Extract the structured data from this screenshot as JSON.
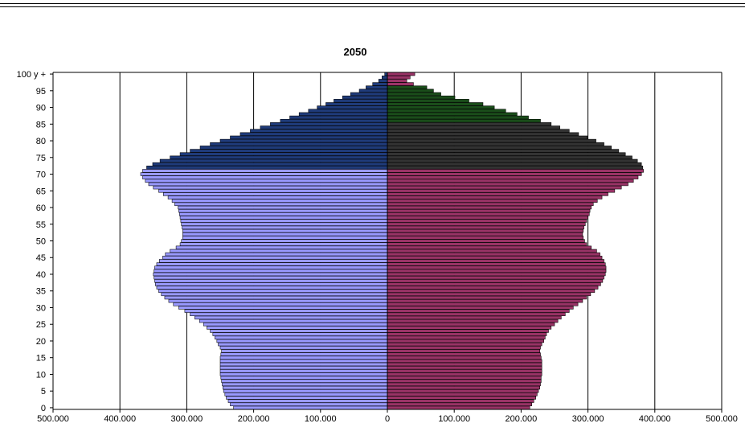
{
  "chart_data": {
    "type": "bar",
    "orientation": "horizontal",
    "subtype": "population-pyramid",
    "title": "2050",
    "xlabel": "",
    "ylabel": "",
    "xlim": [
      -500000,
      500000
    ],
    "x_tick_values": [
      -500000,
      -400000,
      -300000,
      -200000,
      -100000,
      0,
      100000,
      200000,
      300000,
      400000,
      500000
    ],
    "x_tick_labels": [
      "500.000",
      "400.000",
      "300.000",
      "200.000",
      "100.000",
      "0",
      "100.000",
      "200.000",
      "300.000",
      "400.000",
      "500.000"
    ],
    "y_tick_ages": [
      0,
      5,
      10,
      15,
      20,
      25,
      30,
      35,
      40,
      45,
      50,
      55,
      60,
      65,
      70,
      75,
      80,
      85,
      90,
      95,
      100
    ],
    "y_tick_labels": [
      "0",
      "5",
      "10",
      "15",
      "20",
      "25",
      "30",
      "35",
      "40",
      "45",
      "50",
      "55",
      "60",
      "65",
      "70",
      "75",
      "80",
      "85",
      "90",
      "95",
      "100 y +"
    ],
    "grid": "vertical",
    "legend": "none",
    "colors": {
      "left_young": "#9999ff",
      "left_old": "#1f3b7a",
      "right_young": "#993366",
      "right_old": "#333333",
      "right_oldest": "#1a4d1a",
      "bar_edge": "#000000",
      "gridline": "#000000"
    },
    "series": [
      {
        "side": "left",
        "values": [
          230000,
          235000,
          238000,
          241000,
          243000,
          245000,
          246000,
          247000,
          248000,
          249000,
          250000,
          250000,
          250000,
          250000,
          250000,
          250000,
          249000,
          248000,
          250000,
          253000,
          255000,
          258000,
          261000,
          265000,
          270000,
          275000,
          281000,
          288000,
          295000,
          303000,
          312000,
          320000,
          327000,
          333000,
          338000,
          342000,
          345000,
          347000,
          348000,
          349000,
          350000,
          349000,
          348000,
          345000,
          341000,
          336000,
          332000,
          325000,
          316000,
          310000,
          308000,
          306000,
          306000,
          306000,
          307000,
          308000,
          309000,
          310000,
          311000,
          312000,
          313000,
          318000,
          322000,
          328000,
          335000,
          342000,
          350000,
          357000,
          362000,
          366000,
          369000,
          366000,
          360000,
          351000,
          340000,
          325000,
          310000,
          295000,
          280000,
          265000,
          250000,
          235000,
          220000,
          205000,
          190000,
          175000,
          160000,
          146000,
          132000,
          118000,
          105000,
          92000,
          80000,
          67000,
          55000,
          42000,
          32000,
          22000,
          13000,
          8000,
          4000
        ]
      },
      {
        "side": "right",
        "values": [
          213000,
          216000,
          219000,
          222000,
          224000,
          226000,
          228000,
          229000,
          230000,
          230000,
          231000,
          231000,
          231000,
          231000,
          231000,
          230000,
          229000,
          228000,
          229000,
          231000,
          234000,
          236000,
          238000,
          241000,
          245000,
          250000,
          255000,
          260000,
          266000,
          272000,
          278000,
          285000,
          292000,
          298000,
          304000,
          310000,
          315000,
          319000,
          322000,
          324000,
          326000,
          327000,
          327000,
          326000,
          324000,
          321000,
          318000,
          313000,
          305000,
          298000,
          295000,
          293000,
          292000,
          293000,
          294000,
          296000,
          298000,
          300000,
          302000,
          303000,
          305000,
          308000,
          314000,
          321000,
          330000,
          340000,
          350000,
          360000,
          368000,
          375000,
          380000,
          383000,
          382000,
          380000,
          374000,
          366000,
          356000,
          346000,
          335000,
          324000,
          312000,
          299000,
          286000,
          272000,
          258000,
          245000,
          229000,
          211000,
          194000,
          177000,
          160000,
          143000,
          122000,
          101000,
          80000,
          69000,
          59000,
          39000,
          29000,
          34000,
          41000
        ]
      }
    ]
  }
}
